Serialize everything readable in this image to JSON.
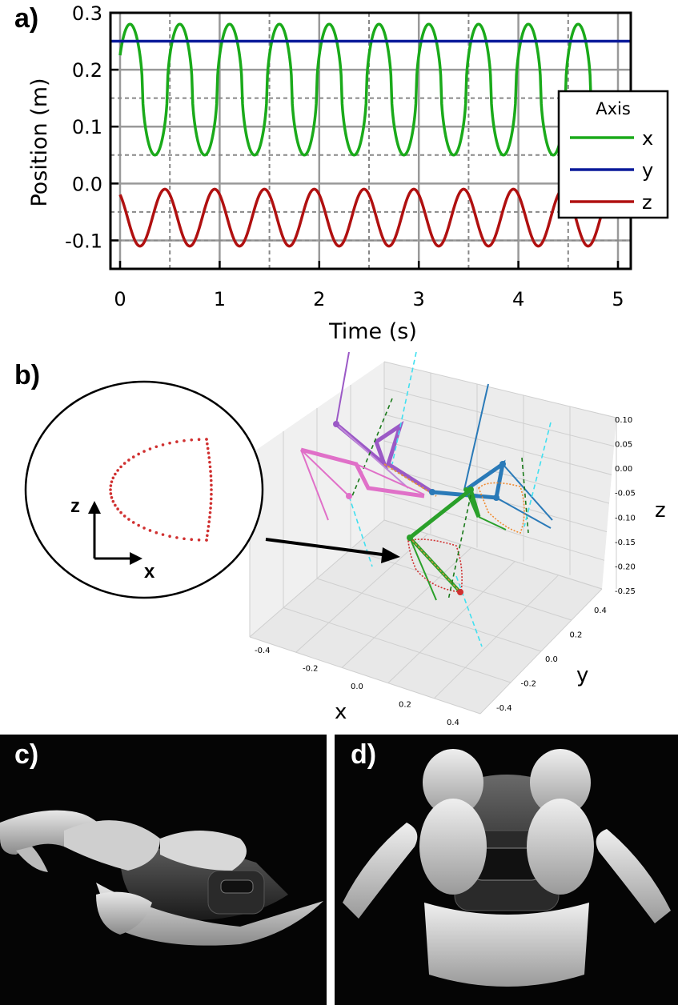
{
  "panels": {
    "a": "a)",
    "b": "b)",
    "c": "c)",
    "d": "d)"
  },
  "chart_data": [
    {
      "type": "line",
      "xlabel": "Time (s)",
      "ylabel": "Position (m)",
      "xlim": [
        0,
        5
      ],
      "ylim": [
        -0.15,
        0.3
      ],
      "xticks": [
        "0",
        "1",
        "2",
        "3",
        "4",
        "5"
      ],
      "yticks": [
        "0.3",
        "0.2",
        "0.1",
        "0.0",
        "-0.1"
      ],
      "grid": true,
      "legend": {
        "title": "Axis",
        "placement": "right"
      },
      "series": [
        {
          "name": "x",
          "color": "#1aaa1a",
          "period": 0.5,
          "phase_peak": 0.1,
          "min": 0.05,
          "max": 0.28,
          "description_values": {
            "t": [
              0,
              0.1,
              0.35,
              0.6,
              0.85,
              1.1
            ],
            "x": [
              0.25,
              0.28,
              0.05,
              0.28,
              0.05,
              0.28
            ]
          }
        },
        {
          "name": "y",
          "color": "#0a1a9a",
          "constant": 0.25
        },
        {
          "name": "z",
          "color": "#b01010",
          "period": 0.5,
          "min": -0.11,
          "max": -0.01
        }
      ],
      "reference_lines": [
        0.25,
        0.15,
        0.05,
        -0.05,
        -0.1
      ]
    },
    {
      "type": "scatter",
      "xlabel": "x",
      "ylabel": "y",
      "zlabel": "z",
      "xticks": [
        "-0.4",
        "-0.2",
        "0.0",
        "0.2",
        "0.4"
      ],
      "yticks": [
        "0.4",
        "0.2",
        "0.0",
        "-0.2",
        "-0.4"
      ],
      "zticks": [
        "0.10",
        "0.05",
        "0.00",
        "-0.05",
        "-0.10",
        "-0.15",
        "-0.20",
        "-0.25"
      ],
      "inset": {
        "axis_z": "z",
        "axis_x": "x"
      }
    }
  ]
}
